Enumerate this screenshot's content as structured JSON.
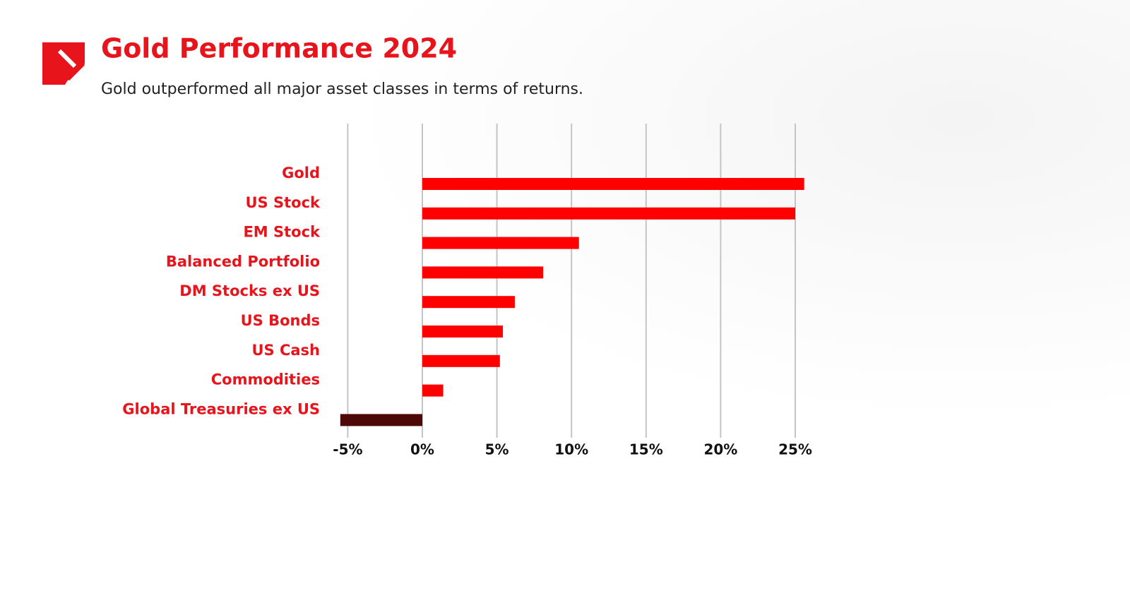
{
  "chart_data": {
    "type": "bar",
    "orientation": "horizontal",
    "title": "Gold Performance 2024",
    "subtitle": "Gold outperformed all major asset classes in terms of returns.",
    "categories": [
      "Gold",
      "US Stock",
      "EM Stock",
      "Balanced Portfolio",
      "DM Stocks ex US",
      "US Bonds",
      "US Cash",
      "Commodities",
      "Global Treasuries ex US"
    ],
    "values": [
      25.6,
      25.0,
      10.5,
      8.1,
      6.2,
      5.4,
      5.2,
      1.4,
      -5.5
    ],
    "colors": [
      "#ff0000",
      "#ff0000",
      "#ff0000",
      "#ff0000",
      "#ff0000",
      "#ff0000",
      "#ff0000",
      "#ff0000",
      "#4e0808"
    ],
    "xlim": [
      -5.5,
      26
    ],
    "xticks": [
      {
        "value": -5,
        "label": "-5%"
      },
      {
        "value": 0,
        "label": "0%"
      },
      {
        "value": 5,
        "label": "5%"
      },
      {
        "value": 10,
        "label": "10%"
      },
      {
        "value": 15,
        "label": "15%"
      },
      {
        "value": 20,
        "label": "20%"
      },
      {
        "value": 25,
        "label": "25%"
      }
    ],
    "grid": true
  }
}
